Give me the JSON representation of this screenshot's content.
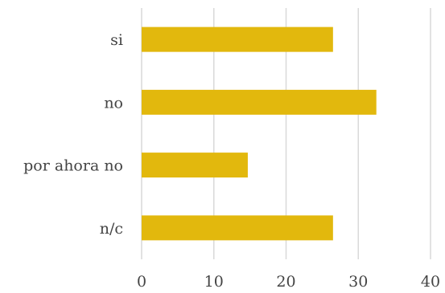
{
  "chart_data": {
    "type": "bar",
    "orientation": "horizontal",
    "categories": [
      "si",
      "no",
      "por ahora no",
      "n/c"
    ],
    "values": [
      26.5,
      32.5,
      14.7,
      26.5
    ],
    "xlim": [
      0,
      40
    ],
    "xticks": [
      "0",
      "10",
      "20",
      "30",
      "40"
    ],
    "grid": true,
    "legend": "none",
    "bar_color": "#E2B80D",
    "grid_color": "#D9D9D9",
    "label_color": "#444444"
  }
}
